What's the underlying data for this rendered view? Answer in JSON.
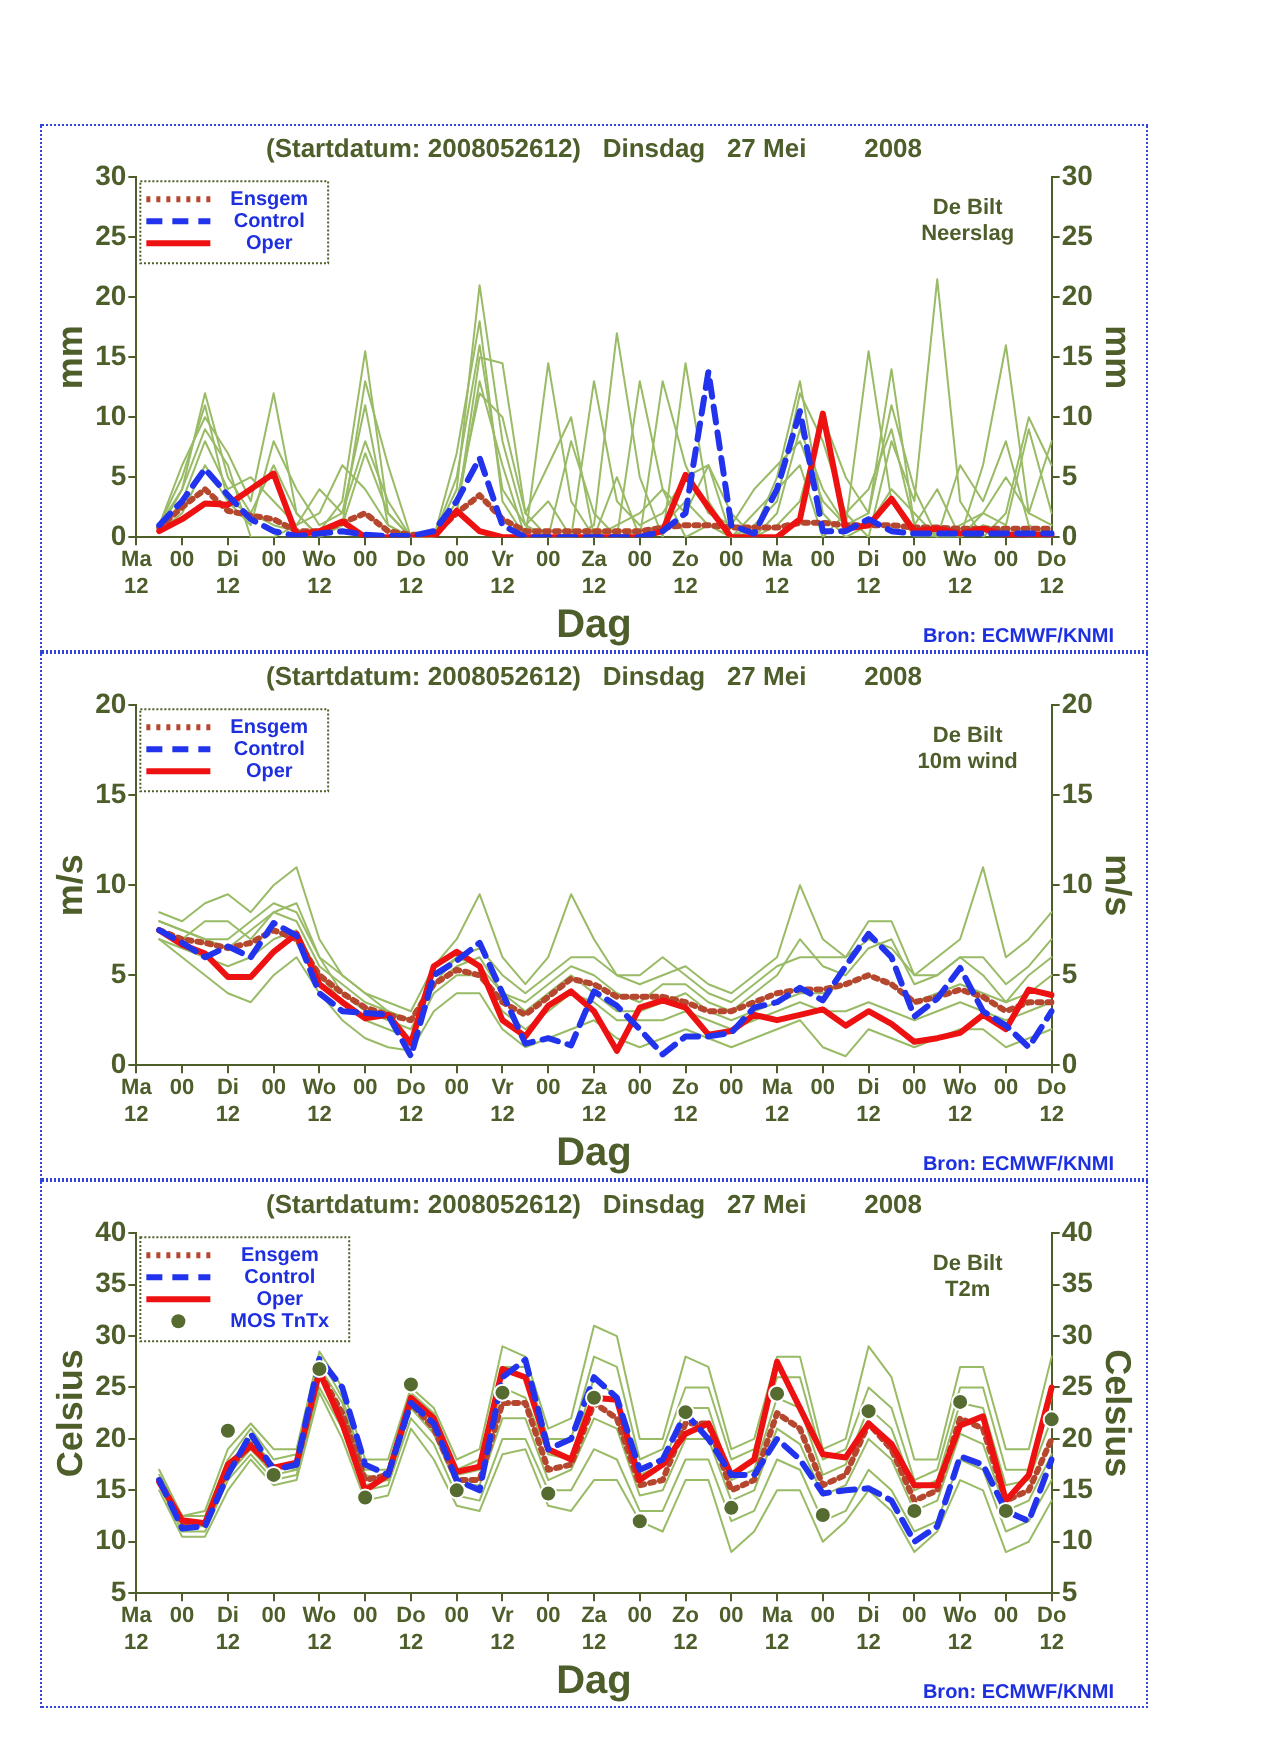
{
  "chart_data": [
    {
      "type": "line",
      "title": "(Startdatum: 2008052612)   Dinsdag   27 Mei        2008",
      "xlabel": "Dag",
      "ylabel": "mm",
      "y2label": "mm",
      "legend": "top left",
      "marker": "none",
      "categories": [
        "Ma\n12",
        null,
        "00",
        null,
        "Di\n12",
        null,
        "00",
        null,
        "Wo\n12",
        null,
        "00",
        null,
        "Do\n12",
        null,
        "00",
        null,
        "Vr\n12",
        null,
        "00",
        null,
        "Za\n12",
        null,
        "00",
        null,
        "Zo\n12",
        null,
        "00",
        null,
        "Ma\n12",
        null,
        "00",
        null,
        "Di\n12",
        null,
        "00",
        null,
        "Wo\n12",
        null,
        "00",
        null,
        "Do\n12"
      ],
      "ylim": [
        0,
        30
      ],
      "yticks": [
        0,
        5,
        10,
        15,
        20,
        25,
        30
      ],
      "y2lim": [
        0,
        30
      ],
      "y2ticks": [
        0,
        5,
        10,
        15,
        20,
        25,
        30
      ],
      "annotations": [
        "De Bilt\nNeerslag",
        "Bron: ECMWF/KNMI"
      ],
      "series": [
        {
          "color": "#99bb66",
          "line_style": "solid",
          "values": [
            null,
            0.5,
            4,
            12,
            5,
            2,
            1,
            0.5,
            0.5,
            3,
            15.5,
            2,
            0,
            0,
            4,
            21,
            8,
            1,
            0,
            0,
            0,
            0,
            0.5,
            1,
            3,
            1,
            0,
            0.5,
            5,
            13,
            2,
            0,
            1,
            4,
            2,
            0,
            0,
            1,
            0.5,
            0,
            0
          ]
        },
        {
          "color": "#99bb66",
          "line_style": "solid",
          "values": [
            null,
            1,
            6,
            10,
            7,
            3,
            12,
            2,
            0,
            1,
            13,
            6,
            0,
            0,
            2,
            15,
            14.5,
            2,
            0,
            0,
            1,
            17,
            5,
            0,
            14.5,
            3,
            0,
            0,
            2,
            9,
            4,
            1,
            15.5,
            3,
            0,
            0,
            0,
            6,
            16,
            2,
            1
          ]
        },
        {
          "color": "#99bb66",
          "line_style": "solid",
          "values": [
            null,
            0.5,
            3,
            8,
            4,
            5,
            3,
            1,
            2,
            6,
            4,
            1,
            0,
            0,
            7,
            18,
            3,
            0,
            14.5,
            3,
            0,
            1,
            2,
            4,
            2,
            6,
            0,
            1,
            3,
            12,
            8,
            2,
            0,
            8,
            3,
            21.5,
            3,
            0,
            2,
            10,
            6
          ]
        },
        {
          "color": "#99bb66",
          "line_style": "solid",
          "values": [
            null,
            1,
            5,
            11,
            3,
            1,
            8,
            4,
            1,
            2,
            8,
            3,
            0,
            0,
            3,
            12,
            10,
            2,
            6,
            10,
            0,
            5,
            0,
            13,
            6,
            2,
            1,
            4,
            6,
            8,
            3,
            1,
            2,
            11,
            4,
            0,
            6,
            3,
            8,
            1,
            0
          ]
        },
        {
          "color": "#99bb66",
          "line_style": "solid",
          "values": [
            null,
            0.5,
            2,
            6,
            3,
            2,
            6,
            2,
            0,
            1,
            7,
            2,
            0,
            0,
            5,
            16,
            4,
            1,
            3,
            0,
            13,
            3,
            1,
            2,
            5,
            6,
            2,
            0,
            1,
            3,
            10,
            5,
            2,
            14,
            1,
            0,
            1,
            2,
            1,
            9,
            2
          ]
        },
        {
          "color": "#99bb66",
          "line_style": "solid",
          "values": [
            null,
            1,
            4,
            9,
            6,
            0,
            0,
            1,
            4,
            2,
            11,
            1,
            0,
            0,
            2,
            13,
            6,
            0,
            0,
            8,
            2,
            0,
            13,
            4,
            0,
            1,
            0,
            2,
            4,
            6,
            0,
            2,
            4,
            9,
            1,
            4,
            0,
            2,
            5,
            2,
            8
          ]
        },
        {
          "name": "Ensgem",
          "color": "#b5472e",
          "line_style": "dotted",
          "values": [
            null,
            0.8,
            2.5,
            4,
            2.2,
            1.8,
            1.5,
            0.5,
            0.5,
            1.2,
            2,
            0.5,
            0.2,
            0.2,
            2,
            3.5,
            1.5,
            0.5,
            0.5,
            0.5,
            0.5,
            0.5,
            0.5,
            0.8,
            1,
            1,
            0.8,
            0.8,
            0.8,
            1.2,
            1.2,
            1,
            1,
            1,
            0.8,
            0.8,
            0.7,
            0.7,
            0.7,
            0.7,
            0.7
          ]
        },
        {
          "name": "Control",
          "color": "#2233ee",
          "line_style": "dashed",
          "values": [
            null,
            1,
            3,
            5.7,
            3.5,
            1.5,
            0.5,
            0.1,
            0.3,
            0.5,
            0.2,
            0.1,
            0.1,
            0.5,
            3,
            6.6,
            1,
            0,
            0,
            0,
            0,
            0,
            0,
            0.5,
            2,
            13.8,
            1,
            0.3,
            4,
            10.5,
            0.5,
            0.5,
            1.5,
            0.5,
            0.3,
            0.3,
            0.3,
            0.3,
            0.3,
            0.3,
            0.3
          ]
        },
        {
          "name": "Oper",
          "color": "#ee1111",
          "line_style": "solid",
          "values": [
            null,
            0.5,
            1.5,
            2.8,
            2.7,
            4,
            5.3,
            0.2,
            0.5,
            1.3,
            0,
            0,
            0,
            0,
            2.2,
            0.5,
            0,
            0,
            0,
            0,
            0,
            0,
            0,
            0.5,
            5.2,
            2.5,
            0,
            0,
            0,
            1.5,
            10.3,
            0.7,
            1,
            3.2,
            0.5,
            0.7,
            0.3,
            0.7,
            0.2,
            0.2,
            0.2
          ]
        }
      ]
    },
    {
      "type": "line",
      "title": "(Startdatum: 2008052612)   Dinsdag   27 Mei        2008",
      "xlabel": "Dag",
      "ylabel": "m/s",
      "y2label": "m/s",
      "legend": "top left",
      "marker": "none",
      "categories": [
        "Ma\n12",
        null,
        "00",
        null,
        "Di\n12",
        null,
        "00",
        null,
        "Wo\n12",
        null,
        "00",
        null,
        "Do\n12",
        null,
        "00",
        null,
        "Vr\n12",
        null,
        "00",
        null,
        "Za\n12",
        null,
        "00",
        null,
        "Zo\n12",
        null,
        "00",
        null,
        "Ma\n12",
        null,
        "00",
        null,
        "Di\n12",
        null,
        "00",
        null,
        "Wo\n12",
        null,
        "00",
        null,
        "Do\n12"
      ],
      "ylim": [
        0,
        20
      ],
      "yticks": [
        0,
        5,
        10,
        15,
        20
      ],
      "y2lim": [
        0,
        20
      ],
      "y2ticks": [
        0,
        5,
        10,
        15,
        20
      ],
      "annotations": [
        "De Bilt\n10m wind",
        "Bron: ECMWF/KNMI"
      ],
      "series": [
        {
          "color": "#99bb66",
          "line_style": "solid",
          "values": [
            null,
            8,
            7.5,
            7,
            7,
            8,
            9,
            8.5,
            6,
            4,
            3,
            2.5,
            2,
            4.5,
            5.5,
            6,
            4,
            3,
            4,
            5,
            4,
            3,
            3,
            3.5,
            4,
            3,
            2.5,
            3,
            3.5,
            4,
            4,
            4.5,
            5,
            4.5,
            3.5,
            4,
            4.5,
            4,
            3.5,
            4,
            5
          ]
        },
        {
          "color": "#99bb66",
          "line_style": "solid",
          "values": [
            null,
            8.5,
            8,
            9,
            9.5,
            8.5,
            10,
            11,
            7,
            5,
            4,
            3.5,
            3,
            5.5,
            7,
            9.5,
            6,
            4.5,
            6,
            9.5,
            7,
            5,
            4.5,
            5,
            5.5,
            4.5,
            4,
            5,
            6,
            10,
            7,
            6,
            8,
            8,
            5,
            6,
            7,
            11,
            6,
            7,
            8.5
          ]
        },
        {
          "color": "#99bb66",
          "line_style": "solid",
          "values": [
            null,
            7,
            6,
            5,
            4,
            3.5,
            5,
            6,
            4,
            2.5,
            1.5,
            1,
            0.8,
            3,
            4,
            4,
            2,
            1,
            1.5,
            2,
            2.5,
            1.5,
            1,
            1.5,
            2,
            1.5,
            1,
            1.5,
            2,
            2.5,
            1,
            0.5,
            2,
            1.5,
            1,
            1.5,
            2,
            2,
            1,
            1.5,
            2
          ]
        },
        {
          "color": "#99bb66",
          "line_style": "solid",
          "values": [
            null,
            7.5,
            7,
            8,
            8,
            7,
            8.5,
            9,
            6,
            5,
            4,
            3,
            2.5,
            5,
            6,
            6.5,
            5,
            4,
            5,
            6,
            6,
            5,
            5,
            6,
            5,
            4,
            3.5,
            4.5,
            5.5,
            6,
            6,
            6,
            7,
            6.5,
            5,
            5,
            6,
            6,
            4.5,
            5.5,
            7
          ]
        },
        {
          "color": "#99bb66",
          "line_style": "solid",
          "values": [
            null,
            7,
            6.5,
            6,
            5.5,
            6,
            7,
            7.5,
            5,
            3.5,
            2.5,
            2,
            1.5,
            4,
            5,
            5,
            3,
            2,
            3,
            4,
            3.5,
            2.5,
            2.5,
            2.5,
            3,
            2.5,
            2,
            2.5,
            3,
            3.5,
            3,
            3,
            3.5,
            3,
            2.5,
            3,
            3.5,
            3,
            2.5,
            3,
            3.5
          ]
        },
        {
          "color": "#99bb66",
          "line_style": "solid",
          "values": [
            null,
            8,
            7.5,
            7,
            6.5,
            7.5,
            8.5,
            8,
            5.5,
            4.5,
            3.5,
            3,
            2.5,
            4.5,
            6,
            5.5,
            4,
            3.5,
            4.5,
            5.5,
            5,
            4,
            3.5,
            4.5,
            4.5,
            3.5,
            3,
            4,
            5,
            7,
            5.5,
            5,
            6.5,
            7,
            4.5,
            5,
            6,
            5,
            3.5,
            5,
            6
          ]
        },
        {
          "name": "Ensgem",
          "color": "#b5472e",
          "line_style": "dotted",
          "values": [
            null,
            7.5,
            7,
            6.8,
            6.5,
            6.8,
            7.5,
            7,
            5,
            4,
            3.2,
            2.8,
            2.5,
            4.5,
            5.3,
            5,
            3.5,
            2.8,
            3.8,
            4.8,
            4.5,
            3.8,
            3.8,
            3.8,
            3.5,
            3,
            3,
            3.5,
            4,
            4.2,
            4.2,
            4.5,
            5,
            4.5,
            3.5,
            3.8,
            4.2,
            3.8,
            3,
            3.5,
            3.5
          ]
        },
        {
          "name": "Control",
          "color": "#2233ee",
          "line_style": "dashed",
          "values": [
            null,
            7.5,
            6.8,
            6,
            6.6,
            6,
            7.9,
            7.2,
            4,
            3,
            2.9,
            2.8,
            0.5,
            5,
            5.8,
            6.8,
            4,
            1.2,
            1.5,
            1.1,
            4.1,
            3.3,
            2,
            0.6,
            1.6,
            1.6,
            1.8,
            3.2,
            3.5,
            4.3,
            3.6,
            5.5,
            7.3,
            6,
            2.7,
            3.7,
            5.4,
            3,
            2.2,
            1,
            3
          ]
        },
        {
          "name": "Oper",
          "color": "#ee1111",
          "line_style": "solid",
          "values": [
            null,
            7.5,
            6.7,
            6.2,
            4.9,
            4.9,
            6.3,
            7.3,
            4.5,
            3.5,
            2.6,
            2.8,
            1.2,
            5.5,
            6.3,
            5.5,
            2.5,
            1.6,
            3.3,
            4.1,
            3,
            0.8,
            3.2,
            3.6,
            3.2,
            1.7,
            1.9,
            2.8,
            2.5,
            2.8,
            3.1,
            2.2,
            3,
            2.3,
            1.3,
            1.5,
            1.8,
            2.8,
            2,
            4.2,
            3.9
          ]
        }
      ]
    },
    {
      "type": "line",
      "title": "(Startdatum: 2008052612)   Dinsdag   27 Mei        2008",
      "xlabel": "Dag",
      "ylabel": "Celsius",
      "y2label": "Celsius",
      "legend": "top left",
      "marker": "none",
      "categories": [
        "Ma\n12",
        null,
        "00",
        null,
        "Di\n12",
        null,
        "00",
        null,
        "Wo\n12",
        null,
        "00",
        null,
        "Do\n12",
        null,
        "00",
        null,
        "Vr\n12",
        null,
        "00",
        null,
        "Za\n12",
        null,
        "00",
        null,
        "Zo\n12",
        null,
        "00",
        null,
        "Ma\n12",
        null,
        "00",
        null,
        "Di\n12",
        null,
        "00",
        null,
        "Wo\n12",
        null,
        "00",
        null,
        "Do\n12"
      ],
      "ylim": [
        5,
        40
      ],
      "yticks": [
        5,
        10,
        15,
        20,
        25,
        30,
        35,
        40
      ],
      "y2lim": [
        5,
        40
      ],
      "y2ticks": [
        5,
        10,
        15,
        20,
        25,
        30,
        35,
        40
      ],
      "annotations": [
        "De Bilt\nT2m",
        "Bron: ECMWF/KNMI"
      ],
      "series": [
        {
          "color": "#99bb66",
          "line_style": "solid",
          "values": [
            null,
            16.5,
            12.5,
            12.5,
            18,
            21,
            18,
            18.5,
            28,
            24,
            17,
            17,
            24.5,
            22.5,
            17,
            18,
            27,
            27,
            20,
            20,
            28,
            27,
            18,
            19,
            25,
            25,
            18,
            19,
            26,
            26,
            18,
            19,
            25,
            23,
            16,
            17,
            25,
            25,
            17,
            17,
            24
          ]
        },
        {
          "color": "#99bb66",
          "line_style": "solid",
          "values": [
            null,
            15.5,
            11,
            11,
            16,
            18.5,
            16,
            16.5,
            25,
            21,
            15,
            15.5,
            22,
            19.5,
            14.5,
            14,
            20,
            20,
            15,
            15,
            19,
            18,
            13,
            13,
            18,
            18,
            12,
            13,
            18,
            17,
            12,
            13,
            17,
            15,
            11,
            12,
            18,
            17,
            11,
            12,
            16
          ]
        },
        {
          "color": "#99bb66",
          "line_style": "solid",
          "values": [
            null,
            17,
            12.5,
            13,
            19,
            21.5,
            19,
            19,
            28.5,
            25,
            18,
            18,
            25,
            23,
            18,
            19,
            29,
            28,
            21,
            22,
            31,
            30,
            20,
            20,
            28,
            27,
            19,
            20,
            28,
            28,
            19,
            20,
            29,
            26,
            18,
            18,
            27,
            27,
            19,
            19,
            28
          ]
        },
        {
          "color": "#99bb66",
          "line_style": "solid",
          "values": [
            null,
            15,
            10.5,
            10.5,
            15,
            18,
            15.5,
            16,
            24.5,
            20,
            14,
            14.5,
            21,
            18,
            13.5,
            13,
            18.5,
            19,
            13.5,
            13,
            16,
            16,
            12,
            11,
            16,
            16,
            9,
            11,
            15,
            15,
            10,
            12,
            15,
            13,
            9,
            11,
            16,
            15,
            9,
            10,
            14
          ]
        },
        {
          "color": "#99bb66",
          "line_style": "solid",
          "values": [
            null,
            16,
            12,
            12,
            17.5,
            20,
            17.5,
            17,
            27,
            23.5,
            16.5,
            16,
            24,
            21.5,
            16.5,
            17,
            25,
            24,
            18.5,
            18,
            26,
            24,
            16.5,
            17.5,
            23,
            23,
            16,
            17,
            24,
            23,
            16.5,
            17.5,
            23,
            21,
            15,
            16,
            23.5,
            23,
            15.5,
            16,
            22
          ]
        },
        {
          "color": "#99bb66",
          "line_style": "solid",
          "values": [
            null,
            16,
            11.5,
            11.5,
            16.5,
            19,
            16.5,
            17,
            26,
            22,
            15.5,
            16,
            23,
            20.5,
            15.5,
            15.5,
            22,
            22,
            16,
            17,
            22,
            21,
            14.5,
            15,
            20,
            20,
            14,
            15,
            21,
            19.5,
            14.5,
            15.5,
            20,
            18,
            13,
            14,
            20.5,
            19.5,
            13,
            14,
            18.5
          ]
        },
        {
          "name": "Ensgem",
          "color": "#b5472e",
          "line_style": "dotted",
          "values": [
            null,
            16,
            11.8,
            11.8,
            17,
            19.5,
            17,
            17.5,
            26.5,
            22.5,
            16,
            16.5,
            23.5,
            21,
            16,
            16,
            23.5,
            23.5,
            17,
            17.5,
            23.5,
            22,
            15.5,
            16,
            21.5,
            21.5,
            15,
            16,
            22.5,
            21,
            15.5,
            16.5,
            21.5,
            19,
            14,
            15,
            22,
            21,
            14,
            15,
            20
          ]
        },
        {
          "name": "Control",
          "color": "#2233ee",
          "line_style": "dashed",
          "values": [
            null,
            16,
            11.3,
            11.5,
            16.5,
            20.5,
            17,
            17.5,
            27.8,
            25,
            17.5,
            16.5,
            23.5,
            21.5,
            16,
            15,
            26,
            27.7,
            19,
            20,
            26,
            24,
            17,
            18,
            22.5,
            20,
            16.5,
            16.5,
            20,
            18,
            14.7,
            15,
            15.2,
            14,
            10,
            11.5,
            18.3,
            17.5,
            13,
            12,
            18
          ]
        },
        {
          "name": "Oper",
          "color": "#ee1111",
          "line_style": "solid",
          "values": [
            null,
            15.8,
            12.1,
            11.8,
            17.5,
            19.3,
            17.2,
            17.7,
            26.5,
            21.5,
            15,
            16.5,
            24,
            22,
            16.8,
            17.3,
            26.8,
            26,
            19,
            18,
            24,
            23.8,
            16,
            17.5,
            20.5,
            21.5,
            16.5,
            18,
            27.5,
            23,
            18.5,
            18.2,
            21.5,
            19.5,
            15.5,
            15.5,
            21.3,
            22.2,
            14,
            16.5,
            25
          ]
        },
        {
          "type": "scatter",
          "name": "MOS TnTx",
          "color": "#556b2f",
          "marker": "circle",
          "values": [
            null,
            null,
            null,
            null,
            20.8,
            null,
            16.5,
            null,
            26.8,
            null,
            14.3,
            null,
            25.3,
            null,
            15,
            null,
            24.5,
            null,
            14.7,
            null,
            24,
            null,
            12,
            null,
            22.6,
            null,
            13.3,
            null,
            24.4,
            null,
            12.6,
            null,
            22.7,
            null,
            13,
            null,
            23.6,
            null,
            13,
            null,
            21.9
          ]
        }
      ]
    }
  ]
}
